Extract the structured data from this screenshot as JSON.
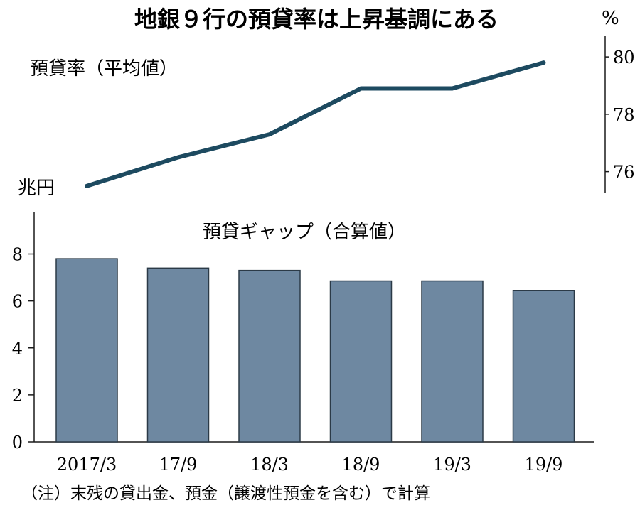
{
  "title": "地銀９行の預貸率は上昇基調にある",
  "note": "（注）末残の貸出金、預金（譲渡性預金を含む）で計算",
  "chart_data": [
    {
      "type": "line",
      "title": "預貸率（平均値）",
      "unit": "%",
      "categories": [
        "2017/3",
        "17/9",
        "18/3",
        "18/9",
        "19/3",
        "19/9"
      ],
      "values": [
        75.5,
        76.5,
        77.3,
        78.9,
        78.9,
        79.8
      ],
      "yticks": [
        76,
        78,
        80
      ],
      "ylim": [
        75,
        80.3
      ],
      "axis_position": "right",
      "color": "#1d4a60"
    },
    {
      "type": "bar",
      "title": "預貸ギャップ（合算値）",
      "unit": "兆円",
      "categories": [
        "2017/3",
        "17/9",
        "18/3",
        "18/9",
        "19/3",
        "19/9"
      ],
      "values": [
        7.8,
        7.4,
        7.3,
        6.85,
        6.85,
        6.45
      ],
      "yticks": [
        0,
        2,
        4,
        6,
        8
      ],
      "ylim": [
        0,
        9.8
      ],
      "axis_position": "left",
      "color": "#6e88a1"
    }
  ]
}
